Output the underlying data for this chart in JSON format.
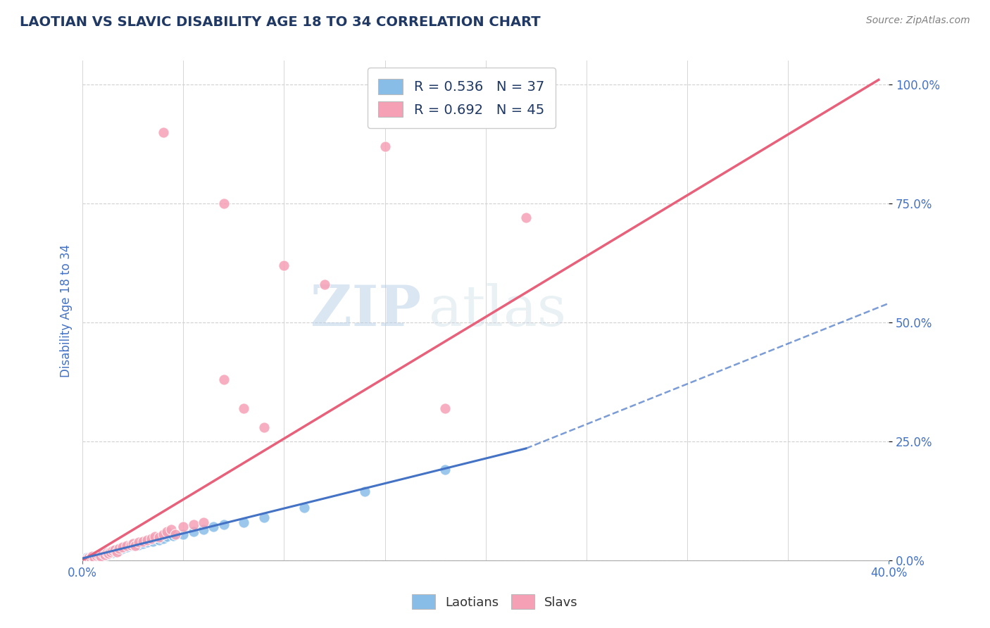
{
  "title": "LAOTIAN VS SLAVIC DISABILITY AGE 18 TO 34 CORRELATION CHART",
  "source": "Source: ZipAtlas.com",
  "ylabel": "Disability Age 18 to 34",
  "xlim": [
    0.0,
    0.4
  ],
  "ylim": [
    0.0,
    1.05
  ],
  "y_tick_labels": [
    "0.0%",
    "25.0%",
    "50.0%",
    "75.0%",
    "100.0%"
  ],
  "y_tick_vals": [
    0.0,
    0.25,
    0.5,
    0.75,
    1.0
  ],
  "laotian_R": 0.536,
  "laotian_N": 37,
  "slavic_R": 0.692,
  "slavic_N": 45,
  "laotian_color": "#88bde8",
  "slavic_color": "#f5a0b5",
  "laotian_line_color": "#4472c4",
  "slavic_line_color": "#e8607a",
  "watermark_zip": "ZIP",
  "watermark_atlas": "atlas",
  "background_color": "#ffffff",
  "grid_color": "#d0d0d0",
  "laotian_scatter": [
    [
      0.002,
      0.005
    ],
    [
      0.003,
      0.003
    ],
    [
      0.004,
      0.007
    ],
    [
      0.005,
      0.005
    ],
    [
      0.006,
      0.008
    ],
    [
      0.007,
      0.01
    ],
    [
      0.008,
      0.008
    ],
    [
      0.009,
      0.012
    ],
    [
      0.01,
      0.01
    ],
    [
      0.011,
      0.015
    ],
    [
      0.012,
      0.012
    ],
    [
      0.013,
      0.018
    ],
    [
      0.015,
      0.016
    ],
    [
      0.016,
      0.02
    ],
    [
      0.018,
      0.02
    ],
    [
      0.02,
      0.025
    ],
    [
      0.022,
      0.028
    ],
    [
      0.025,
      0.03
    ],
    [
      0.028,
      0.032
    ],
    [
      0.03,
      0.035
    ],
    [
      0.032,
      0.038
    ],
    [
      0.035,
      0.04
    ],
    [
      0.038,
      0.042
    ],
    [
      0.04,
      0.045
    ],
    [
      0.042,
      0.05
    ],
    [
      0.045,
      0.052
    ],
    [
      0.05,
      0.055
    ],
    [
      0.055,
      0.06
    ],
    [
      0.06,
      0.065
    ],
    [
      0.065,
      0.07
    ],
    [
      0.07,
      0.075
    ],
    [
      0.08,
      0.08
    ],
    [
      0.09,
      0.09
    ],
    [
      0.11,
      0.11
    ],
    [
      0.14,
      0.145
    ],
    [
      0.18,
      0.19
    ],
    [
      0.004,
      0.0
    ]
  ],
  "slavic_scatter": [
    [
      0.002,
      0.003
    ],
    [
      0.003,
      0.006
    ],
    [
      0.004,
      0.005
    ],
    [
      0.005,
      0.008
    ],
    [
      0.006,
      0.006
    ],
    [
      0.007,
      0.01
    ],
    [
      0.008,
      0.012
    ],
    [
      0.009,
      0.009
    ],
    [
      0.01,
      0.014
    ],
    [
      0.011,
      0.012
    ],
    [
      0.012,
      0.016
    ],
    [
      0.013,
      0.015
    ],
    [
      0.014,
      0.018
    ],
    [
      0.015,
      0.02
    ],
    [
      0.016,
      0.022
    ],
    [
      0.017,
      0.018
    ],
    [
      0.018,
      0.025
    ],
    [
      0.02,
      0.028
    ],
    [
      0.022,
      0.03
    ],
    [
      0.024,
      0.032
    ],
    [
      0.025,
      0.035
    ],
    [
      0.026,
      0.03
    ],
    [
      0.028,
      0.038
    ],
    [
      0.03,
      0.04
    ],
    [
      0.032,
      0.042
    ],
    [
      0.034,
      0.045
    ],
    [
      0.036,
      0.05
    ],
    [
      0.038,
      0.048
    ],
    [
      0.04,
      0.055
    ],
    [
      0.042,
      0.06
    ],
    [
      0.044,
      0.065
    ],
    [
      0.046,
      0.055
    ],
    [
      0.05,
      0.07
    ],
    [
      0.055,
      0.075
    ],
    [
      0.06,
      0.08
    ],
    [
      0.07,
      0.38
    ],
    [
      0.08,
      0.32
    ],
    [
      0.09,
      0.28
    ],
    [
      0.1,
      0.62
    ],
    [
      0.12,
      0.58
    ],
    [
      0.15,
      0.87
    ],
    [
      0.18,
      0.32
    ],
    [
      0.22,
      0.72
    ],
    [
      0.07,
      0.75
    ],
    [
      0.04,
      0.9
    ]
  ],
  "laotian_line_solid": [
    [
      0.0,
      0.004
    ],
    [
      0.22,
      0.235
    ]
  ],
  "laotian_line_dashed": [
    [
      0.22,
      0.235
    ],
    [
      0.4,
      0.54
    ]
  ],
  "slavic_line": [
    [
      0.0,
      0.0
    ],
    [
      0.395,
      1.01
    ]
  ],
  "title_color": "#1f3864",
  "source_color": "#808080",
  "axis_label_color": "#4472c4",
  "legend_text_color": "#1f3864"
}
